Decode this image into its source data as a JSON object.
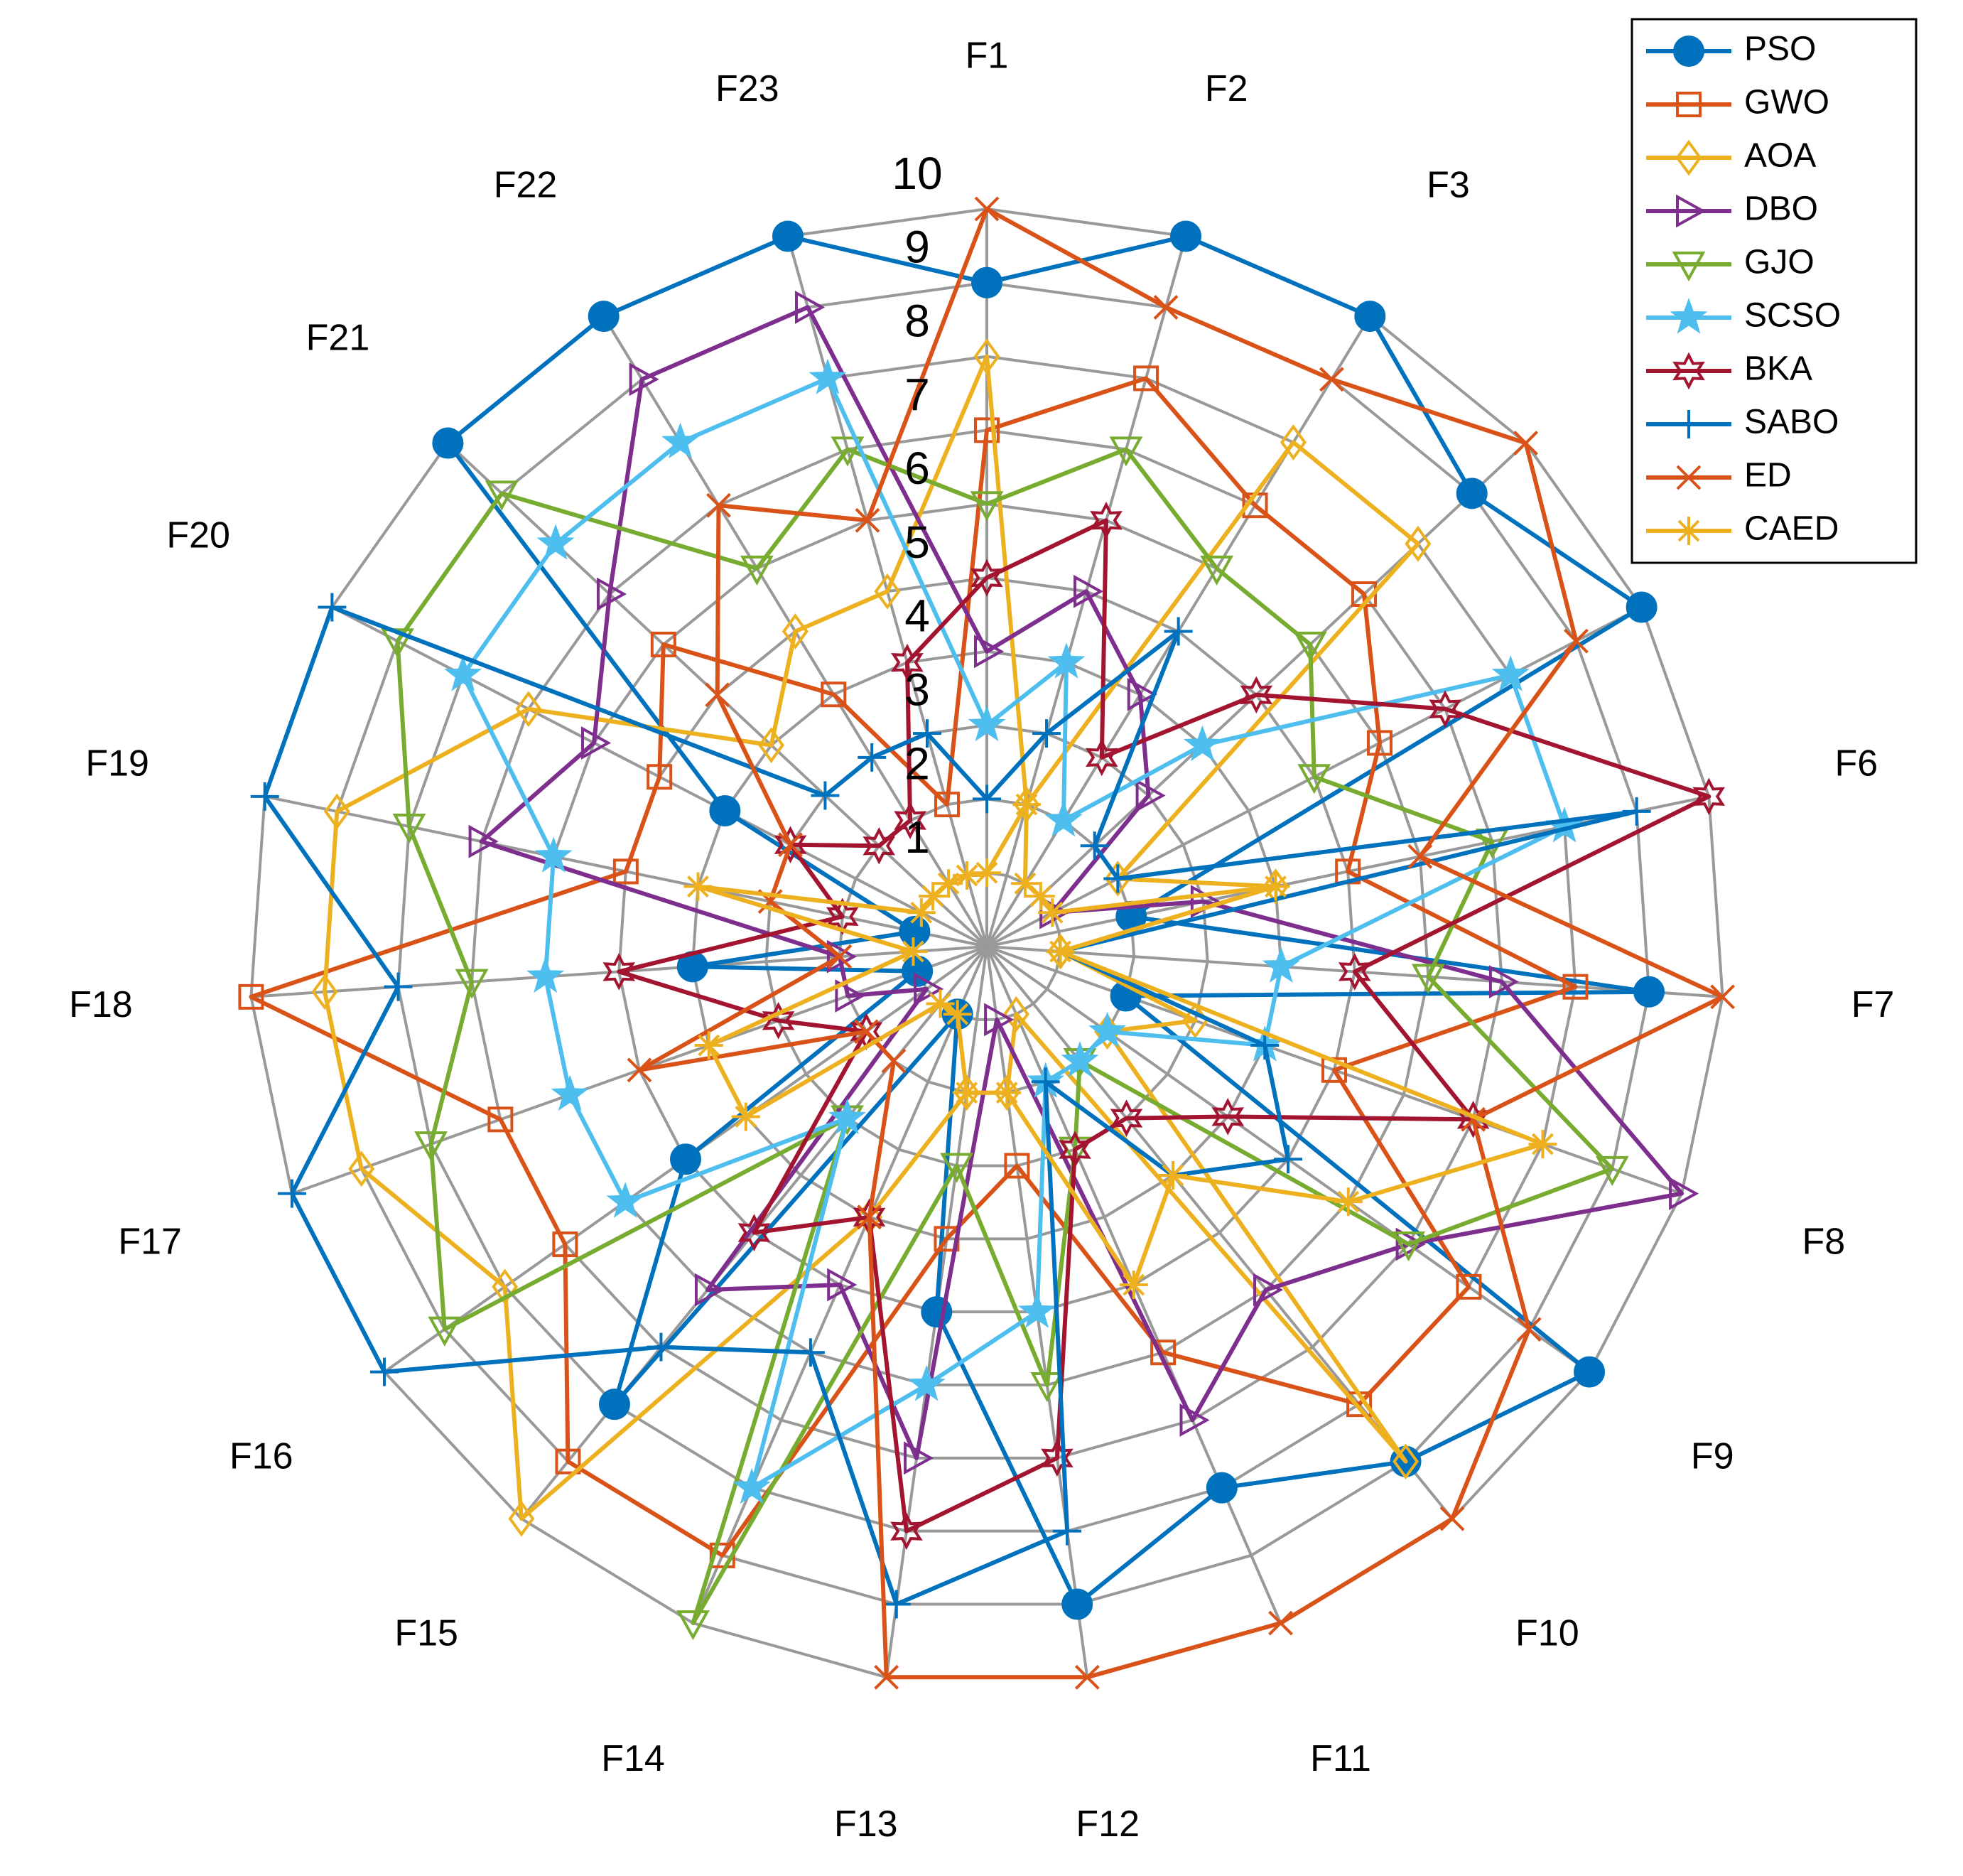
{
  "chart_data": {
    "type": "radar",
    "categories": [
      "F1",
      "F2",
      "F3",
      null,
      null,
      "F6",
      "F7",
      "F8",
      "F9",
      "F10",
      "F11",
      "F12",
      "F13",
      "F14",
      "F15",
      "F16",
      "F17",
      "F18",
      "F19",
      "F20",
      "F21",
      "F22",
      "F23"
    ],
    "rlim": [
      0,
      10
    ],
    "rticks": [
      1,
      2,
      3,
      4,
      5,
      6,
      7,
      8,
      9,
      10
    ],
    "grid": true,
    "grid_color": "#999999",
    "legend": "upper right",
    "series": [
      {
        "name": "PSO",
        "color": "#0072BD",
        "marker": "o",
        "values": [
          9,
          10,
          10,
          9,
          10,
          2,
          9,
          2,
          10,
          9,
          8,
          9,
          5,
          1,
          8,
          5,
          1,
          4,
          1,
          4,
          10,
          10,
          10
        ]
      },
      {
        "name": "GWO",
        "color": "#D95319",
        "marker": "s",
        "values": [
          7,
          8,
          7,
          7,
          6,
          5,
          8,
          5,
          8,
          8,
          6,
          3,
          4,
          9,
          9,
          7,
          7,
          10,
          5,
          5,
          6,
          4,
          2
        ]
      },
      {
        "name": "AOA",
        "color": "#EDB120",
        "marker": "d",
        "values": [
          8,
          2,
          8,
          8,
          2,
          4,
          1,
          3,
          2,
          9,
          1,
          2,
          2,
          4,
          10,
          8,
          9,
          9,
          9,
          7,
          4,
          5,
          5
        ]
      },
      {
        "name": "DBO",
        "color": "#7E2F8E",
        "marker": ">",
        "values": [
          4,
          5,
          4,
          3,
          1,
          3,
          7,
          10,
          7,
          6,
          7,
          1,
          7,
          5,
          6,
          1,
          2,
          2,
          7,
          6,
          7,
          9,
          9
        ]
      },
      {
        "name": "GJO",
        "color": "#77AC30",
        "marker": "v",
        "values": [
          6,
          7,
          6,
          6,
          5,
          7,
          6,
          9,
          7,
          2,
          3,
          6,
          3,
          10,
          3,
          9,
          8,
          7,
          8,
          9,
          9,
          6,
          7
        ]
      },
      {
        "name": "SCSO",
        "color": "#4DBEEE",
        "marker": "p",
        "values": [
          3,
          4,
          2,
          4,
          8,
          8,
          4,
          4,
          2,
          2,
          2,
          5,
          6,
          8,
          3,
          6,
          6,
          6,
          6,
          8,
          8,
          8,
          8
        ]
      },
      {
        "name": "BKA",
        "color": "#A2142F",
        "marker": "h",
        "values": [
          5,
          6,
          3,
          5,
          7,
          10,
          5,
          7,
          4,
          3,
          3,
          7,
          8,
          4,
          5,
          2,
          3,
          5,
          2,
          3,
          2,
          2,
          4
        ]
      },
      {
        "name": "SABO",
        "color": "#0072BD",
        "marker": "+",
        "values": [
          2,
          3,
          5,
          2,
          2,
          9,
          1,
          4,
          5,
          4,
          2,
          8,
          9,
          6,
          7,
          10,
          10,
          8,
          10,
          10,
          3,
          3,
          3
        ]
      },
      {
        "name": "ED",
        "color": "#D95319",
        "marker": "x",
        "values": [
          10,
          9,
          9,
          10,
          9,
          6,
          10,
          7,
          9,
          10,
          10,
          10,
          10,
          4,
          2,
          2,
          5,
          2,
          3,
          3,
          5,
          7,
          6
        ]
      },
      {
        "name": "CAED",
        "color": "#EDB120",
        "marker": "*",
        "values": [
          1,
          2,
          1,
          1,
          1,
          4,
          1,
          8,
          6,
          4,
          5,
          2,
          2,
          1,
          1,
          4,
          4,
          1,
          4,
          1,
          1,
          1,
          1
        ]
      }
    ]
  }
}
